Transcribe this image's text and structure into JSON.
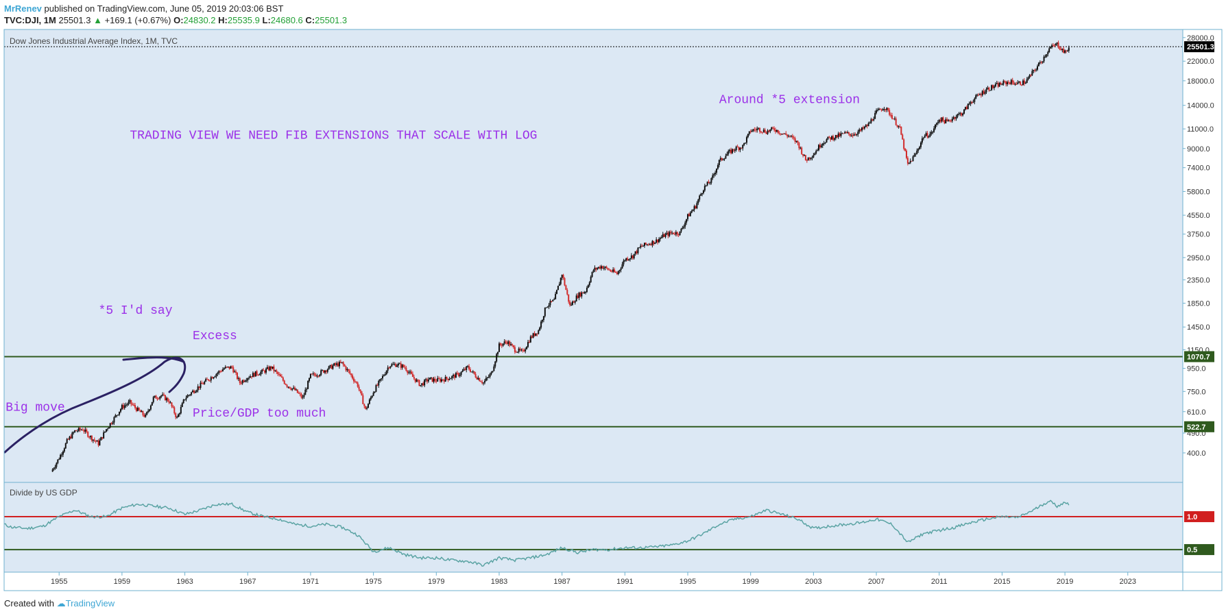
{
  "header": {
    "author": "MrRenev",
    "published_text": "published on TradingView.com, June 05, 2019 20:03:06 BST",
    "symbol": "TVC:DJI, 1M",
    "last": "25501.3",
    "change": "+169.1 (+0.67%)",
    "o_label": "O:",
    "o": "24830.2",
    "h_label": "H:",
    "h": "25535.9",
    "l_label": "L:",
    "l": "24680.6",
    "c_label": "C:",
    "c": "25501.3"
  },
  "footer": {
    "created_with": "Created with",
    "brand": "TradingView"
  },
  "colors": {
    "pane_bg": "#dce8f4",
    "border": "#6fb1cf",
    "annotation": "#9b30e8",
    "hline_green": "#2f5a1e",
    "hline_red": "#d11f1f",
    "ratio_line": "#5aa3a3",
    "candle_up": "#111111",
    "candle_down": "#d12a2a"
  },
  "chart_data": [
    {
      "type": "line",
      "title": "Dow Jones Industrial Average Index, 1M, TVC",
      "y_scale": "log",
      "ylim": [
        300,
        30000
      ],
      "xlim": [
        1951.5,
        2026.5
      ],
      "x_ticks": [
        "1955",
        "1959",
        "1963",
        "1967",
        "1971",
        "1975",
        "1979",
        "1983",
        "1987",
        "1991",
        "1995",
        "1999",
        "2003",
        "2007",
        "2011",
        "2015",
        "2019",
        "2023"
      ],
      "y_ticks": [
        "28000.0",
        "22000.0",
        "18000.0",
        "14000.0",
        "11000.0",
        "9000.0",
        "7400.0",
        "5800.0",
        "4550.0",
        "3750.0",
        "2950.0",
        "2350.0",
        "1850.0",
        "1450.0",
        "1150.0",
        "950.0",
        "750.0",
        "610.0",
        "490.0",
        "400.0"
      ],
      "price_badges": [
        {
          "label": "25501.3",
          "value": 25501.3,
          "color": "#000000"
        },
        {
          "label": "1070.7",
          "value": 1070.7,
          "color": "#2f5a1e"
        },
        {
          "label": "522.7",
          "value": 522.7,
          "color": "#2f5a1e"
        }
      ],
      "horizontal_lines": [
        1070.7,
        522.7
      ],
      "series": [
        {
          "name": "",
          "x": [
            1954.5,
            1955,
            1955.5,
            1956,
            1956.5,
            1957,
            1957.5,
            1958,
            1958.5,
            1959,
            1959.5,
            1960,
            1960.5,
            1961,
            1961.5,
            1962,
            1962.5,
            1963,
            1963.5,
            1964,
            1964.5,
            1965,
            1965.5,
            1966,
            1966.5,
            1967,
            1967.5,
            1968,
            1968.5,
            1969,
            1969.5,
            1970,
            1970.5,
            1971,
            1971.5,
            1972,
            1972.5,
            1973,
            1973.5,
            1974,
            1974.5,
            1975,
            1975.5,
            1976,
            1976.5,
            1977,
            1977.5,
            1978,
            1978.5,
            1979,
            1979.5,
            1980,
            1980.5,
            1981,
            1981.5,
            1982,
            1982.5,
            1983,
            1983.5,
            1984,
            1984.5,
            1985,
            1985.5,
            1986,
            1986.5,
            1987,
            1987.5,
            1988,
            1988.5,
            1989,
            1989.5,
            1990,
            1990.5,
            1991,
            1991.5,
            1992,
            1992.5,
            1993,
            1993.5,
            1994,
            1994.5,
            1995,
            1995.5,
            1996,
            1996.5,
            1997,
            1997.5,
            1998,
            1998.5,
            1999,
            1999.5,
            2000,
            2000.5,
            2001,
            2001.5,
            2002,
            2002.5,
            2003,
            2003.5,
            2004,
            2004.5,
            2005,
            2005.5,
            2006,
            2006.5,
            2007,
            2007.5,
            2008,
            2008.5,
            2009,
            2009.5,
            2010,
            2010.5,
            2011,
            2011.5,
            2012,
            2012.5,
            2013,
            2013.5,
            2014,
            2014.5,
            2015,
            2015.5,
            2016,
            2016.5,
            2017,
            2017.5,
            2018,
            2018.5,
            2019,
            2019.3
          ],
          "values": [
            330,
            380,
            450,
            500,
            510,
            470,
            440,
            510,
            570,
            640,
            670,
            620,
            580,
            700,
            720,
            680,
            570,
            700,
            750,
            800,
            850,
            900,
            950,
            960,
            820,
            870,
            900,
            920,
            960,
            880,
            800,
            760,
            700,
            880,
            900,
            940,
            980,
            1000,
            900,
            800,
            620,
            750,
            850,
            980,
            990,
            960,
            870,
            800,
            850,
            840,
            850,
            870,
            900,
            960,
            880,
            820,
            900,
            1200,
            1250,
            1150,
            1120,
            1300,
            1400,
            1800,
            1900,
            2500,
            1800,
            2000,
            2100,
            2600,
            2700,
            2600,
            2500,
            2900,
            3000,
            3300,
            3400,
            3500,
            3700,
            3800,
            3800,
            4500,
            5000,
            6000,
            6500,
            7900,
            8500,
            9000,
            9200,
            10800,
            11000,
            10700,
            11000,
            10500,
            10200,
            9500,
            8000,
            8500,
            9500,
            10000,
            10200,
            10500,
            10400,
            10800,
            11500,
            13000,
            13800,
            12500,
            11000,
            7600,
            8500,
            10200,
            10500,
            12200,
            11800,
            12500,
            13000,
            14500,
            15500,
            16500,
            17000,
            17500,
            17800,
            17500,
            17800,
            19800,
            22000,
            25000,
            26200,
            24000,
            25500
          ]
        }
      ]
    },
    {
      "type": "line",
      "title": "Divide by US GDP",
      "y_scale": "log",
      "ylim": [
        0.32,
        2.0
      ],
      "xlim": [
        1951.5,
        2026.5
      ],
      "price_badges": [
        {
          "label": "1.0",
          "value": 1.0,
          "color": "#d11f1f"
        },
        {
          "label": "0.5",
          "value": 0.5,
          "color": "#2f5a1e"
        }
      ],
      "horizontal_lines": [
        1.0,
        0.5
      ],
      "series": [
        {
          "name": "",
          "x": [
            1951.5,
            1952,
            1953,
            1954,
            1955,
            1956,
            1957,
            1958,
            1959,
            1960,
            1961,
            1962,
            1963,
            1964,
            1965,
            1966,
            1967,
            1968,
            1969,
            1970,
            1971,
            1972,
            1973,
            1974,
            1975,
            1976,
            1977,
            1978,
            1979,
            1980,
            1981,
            1982,
            1983,
            1984,
            1985,
            1986,
            1987,
            1988,
            1989,
            1990,
            1991,
            1992,
            1993,
            1994,
            1995,
            1996,
            1997,
            1998,
            1999,
            2000,
            2001,
            2002,
            2003,
            2004,
            2005,
            2006,
            2007,
            2008,
            2009,
            2010,
            2011,
            2012,
            2013,
            2014,
            2015,
            2016,
            2017,
            2018,
            2018.5,
            2019,
            2019.3
          ],
          "values": [
            0.85,
            0.8,
            0.78,
            0.82,
            1.0,
            1.15,
            1.0,
            1.0,
            1.2,
            1.3,
            1.25,
            1.2,
            1.05,
            1.15,
            1.3,
            1.3,
            1.1,
            1.0,
            0.95,
            0.85,
            0.82,
            0.85,
            0.8,
            0.68,
            0.48,
            0.52,
            0.45,
            0.42,
            0.42,
            0.4,
            0.39,
            0.36,
            0.42,
            0.4,
            0.42,
            0.45,
            0.52,
            0.47,
            0.5,
            0.5,
            0.52,
            0.52,
            0.53,
            0.55,
            0.6,
            0.7,
            0.85,
            0.95,
            1.0,
            1.15,
            1.05,
            0.95,
            0.78,
            0.82,
            0.85,
            0.88,
            0.95,
            0.85,
            0.58,
            0.7,
            0.75,
            0.8,
            0.88,
            0.95,
            1.0,
            0.98,
            1.15,
            1.4,
            1.25,
            1.35,
            1.3
          ]
        }
      ]
    }
  ],
  "annotations": [
    {
      "text": "TRADING VIEW WE NEED FIB EXTENSIONS THAT SCALE WITH LOG",
      "x": 1959.5,
      "y": 9950
    },
    {
      "text": "Around *5 extension",
      "x": 1997,
      "y": 14300
    },
    {
      "text": "*5 I'd say",
      "x": 1957.5,
      "y": 1660
    },
    {
      "text": "Excess",
      "x": 1963.5,
      "y": 1280
    },
    {
      "text": "Big move",
      "x": 1951.6,
      "y": 615
    },
    {
      "text": "Price/GDP too much",
      "x": 1963.5,
      "y": 580
    }
  ]
}
